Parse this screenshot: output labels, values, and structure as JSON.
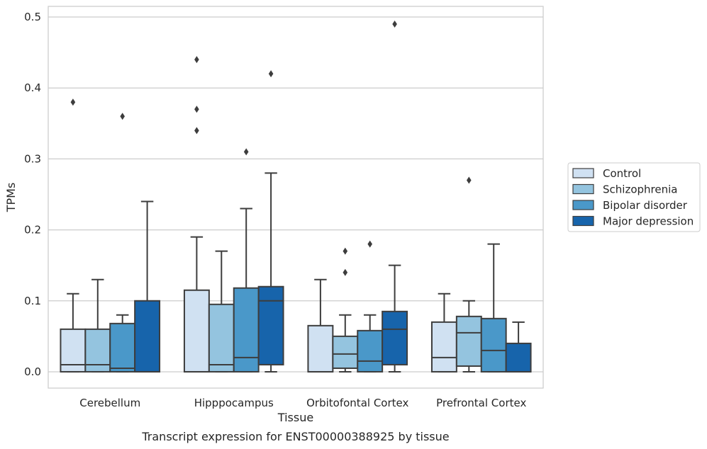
{
  "caption": "Transcript expression for ENST00000388925 by tissue",
  "chart_data": {
    "type": "box",
    "title": "",
    "xlabel": "Tissue",
    "ylabel": "TPMs",
    "ylim": [
      -0.023,
      0.515
    ],
    "yticks": [
      0.0,
      0.1,
      0.2,
      0.3,
      0.4,
      0.5
    ],
    "ytick_labels": [
      "0.0",
      "0.1",
      "0.2",
      "0.3",
      "0.4",
      "0.5"
    ],
    "grid": "horizontal",
    "legend_position": "right",
    "categories": [
      "Cerebellum",
      "Hipppocampus",
      "Orbitofontal Cortex",
      "Prefrontal Cortex"
    ],
    "series": [
      {
        "name": "Control",
        "color": "#d0e1f2",
        "boxes": [
          {
            "whislo": 0.0,
            "q1": 0.0,
            "med": 0.01,
            "q3": 0.06,
            "whishi": 0.11,
            "fliers": [
              0.38
            ]
          },
          {
            "whislo": 0.0,
            "q1": 0.0,
            "med": 0.0,
            "q3": 0.115,
            "whishi": 0.19,
            "fliers": [
              0.34,
              0.37,
              0.44
            ]
          },
          {
            "whislo": 0.0,
            "q1": 0.0,
            "med": 0.0,
            "q3": 0.065,
            "whishi": 0.13,
            "fliers": []
          },
          {
            "whislo": 0.0,
            "q1": 0.0,
            "med": 0.02,
            "q3": 0.07,
            "whishi": 0.11,
            "fliers": []
          }
        ]
      },
      {
        "name": "Schizophrenia",
        "color": "#94c4df",
        "boxes": [
          {
            "whislo": 0.0,
            "q1": 0.0,
            "med": 0.01,
            "q3": 0.06,
            "whishi": 0.13,
            "fliers": []
          },
          {
            "whislo": 0.0,
            "q1": 0.0,
            "med": 0.01,
            "q3": 0.095,
            "whishi": 0.17,
            "fliers": []
          },
          {
            "whislo": 0.0,
            "q1": 0.005,
            "med": 0.025,
            "q3": 0.05,
            "whishi": 0.08,
            "fliers": [
              0.14,
              0.17
            ]
          },
          {
            "whislo": 0.0,
            "q1": 0.008,
            "med": 0.055,
            "q3": 0.078,
            "whishi": 0.1,
            "fliers": [
              0.27
            ]
          }
        ]
      },
      {
        "name": "Bipolar disorder",
        "color": "#4a98c9",
        "boxes": [
          {
            "whislo": 0.0,
            "q1": 0.0,
            "med": 0.005,
            "q3": 0.068,
            "whishi": 0.08,
            "fliers": [
              0.36
            ]
          },
          {
            "whislo": 0.0,
            "q1": 0.0,
            "med": 0.02,
            "q3": 0.118,
            "whishi": 0.23,
            "fliers": [
              0.31
            ]
          },
          {
            "whislo": 0.0,
            "q1": 0.0,
            "med": 0.015,
            "q3": 0.058,
            "whishi": 0.08,
            "fliers": [
              0.18
            ]
          },
          {
            "whislo": 0.0,
            "q1": 0.0,
            "med": 0.03,
            "q3": 0.075,
            "whishi": 0.18,
            "fliers": []
          }
        ]
      },
      {
        "name": "Major depression",
        "color": "#1764ab",
        "boxes": [
          {
            "whislo": 0.0,
            "q1": 0.0,
            "med": 0.0,
            "q3": 0.1,
            "whishi": 0.24,
            "fliers": []
          },
          {
            "whislo": 0.0,
            "q1": 0.01,
            "med": 0.1,
            "q3": 0.12,
            "whishi": 0.28,
            "fliers": [
              0.42
            ]
          },
          {
            "whislo": 0.0,
            "q1": 0.01,
            "med": 0.06,
            "q3": 0.085,
            "whishi": 0.15,
            "fliers": [
              0.49
            ]
          },
          {
            "whislo": 0.0,
            "q1": 0.0,
            "med": 0.0,
            "q3": 0.04,
            "whishi": 0.07,
            "fliers": []
          }
        ]
      }
    ]
  }
}
